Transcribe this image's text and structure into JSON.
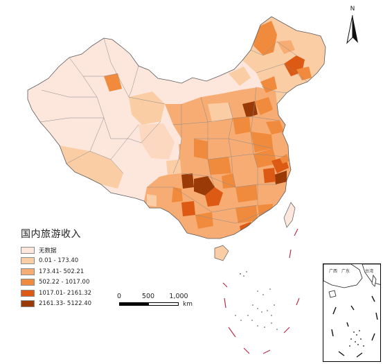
{
  "legend": {
    "title": "国内旅游收入",
    "items": [
      {
        "label": "无数据",
        "color": "#fde6dc"
      },
      {
        "label": "0.01 - 173.40",
        "color": "#fbcda4"
      },
      {
        "label": "173.41- 502.21",
        "color": "#f7ac73"
      },
      {
        "label": "502.22 - 1017.00",
        "color": "#f08a3c"
      },
      {
        "label": "1017.01- 2161.32",
        "color": "#dd5a14"
      },
      {
        "label": "2161.33- 5122.40",
        "color": "#9a3a06"
      }
    ]
  },
  "scalebar": {
    "labels": [
      "0",
      "500",
      "1,000"
    ],
    "unit": "km"
  },
  "north_arrow": {
    "label": "N"
  },
  "inset": {
    "labels": [
      "广西",
      "广东",
      "台湾"
    ]
  },
  "colors": {
    "boundary": "#8a8a8a",
    "outline": "#5a5a5a",
    "dash": "#b4324a"
  }
}
